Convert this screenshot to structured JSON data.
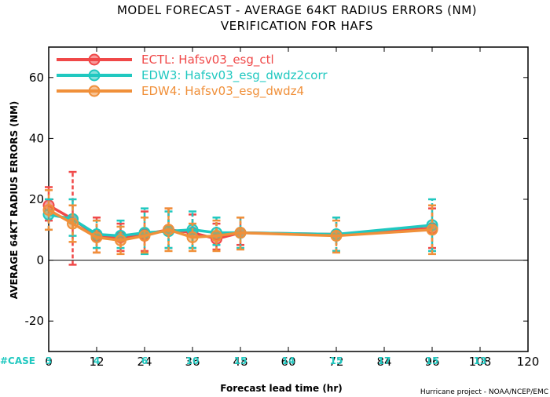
{
  "chart_data": {
    "type": "line",
    "title": "MODEL FORECAST - AVERAGE 64KT RADIUS ERRORS (NM)",
    "subtitle": "VERIFICATION FOR HAFS",
    "xlabel": "Forecast lead time (hr)",
    "ylabel": "AVERAGE 64KT RADIUS ERRORS (NM)",
    "xlim": [
      0,
      120
    ],
    "ylim": [
      -30,
      70
    ],
    "xticks": [
      0,
      12,
      24,
      36,
      48,
      60,
      72,
      84,
      96,
      108,
      120
    ],
    "yticks": [
      -20,
      0,
      20,
      40,
      60
    ],
    "zero_line": true,
    "legend_position": "top-left",
    "series": [
      {
        "name": "ECTL: Hafsv03_esg_ctl",
        "color": "#f04848",
        "x": [
          0,
          6,
          12,
          18,
          24,
          30,
          36,
          42,
          48,
          72,
          96
        ],
        "y": [
          18,
          13.5,
          8,
          7.5,
          8.5,
          10,
          9,
          7,
          9,
          8.5,
          10.5
        ],
        "err_low": [
          13,
          -1.5,
          2.5,
          3,
          3,
          4,
          4,
          3.5,
          5,
          3,
          4
        ],
        "err_high": [
          24,
          29,
          14,
          12,
          16,
          17,
          15,
          12,
          14,
          14,
          17
        ]
      },
      {
        "name": "EDW3: Hafsv03_esg_dwdz2corr",
        "color": "#20c8c0",
        "x": [
          0,
          6,
          12,
          18,
          24,
          30,
          36,
          42,
          48,
          72,
          96
        ],
        "y": [
          15,
          13.5,
          8.5,
          8,
          9,
          9.5,
          10,
          9,
          9,
          8.5,
          11.5
        ],
        "err_low": [
          10,
          8,
          4,
          4,
          2,
          4,
          4,
          5,
          4,
          3,
          3
        ],
        "err_high": [
          20,
          20,
          13,
          13,
          17,
          16,
          16,
          14,
          14,
          14,
          20
        ]
      },
      {
        "name": "EDW4: Hafsv03_esg_dwdz4",
        "color": "#f0903a",
        "x": [
          0,
          6,
          12,
          18,
          24,
          30,
          36,
          42,
          48,
          72,
          96
        ],
        "y": [
          16.5,
          12,
          7.5,
          6.5,
          8,
          10,
          7.5,
          8,
          9,
          8,
          10
        ],
        "err_low": [
          10,
          6,
          2.5,
          2,
          2.5,
          3,
          3,
          3,
          3.5,
          2.5,
          2
        ],
        "err_high": [
          23,
          18,
          13,
          11,
          14,
          17,
          12,
          13,
          14,
          13,
          18
        ]
      }
    ],
    "case_counts": {
      "label": "#CASE",
      "x": [
        0,
        12,
        24,
        36,
        48,
        60,
        72,
        84,
        96,
        108
      ],
      "values": [
        "3",
        "4",
        "6",
        "10",
        "15",
        "14",
        "15",
        "17",
        "15",
        "13"
      ]
    }
  },
  "credit": "Hurricane project - NOAA/NCEP/EMC"
}
